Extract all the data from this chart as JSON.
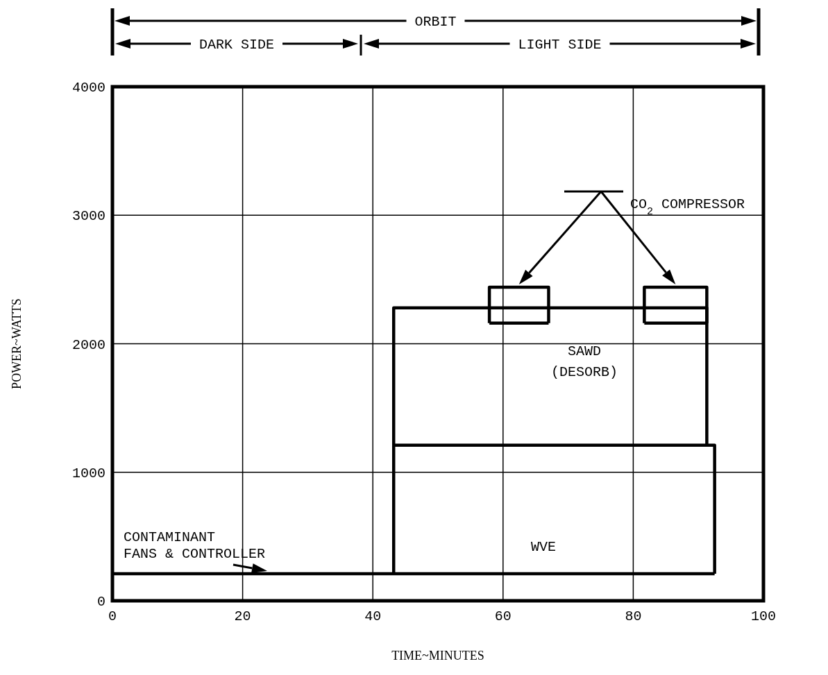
{
  "chart_data": {
    "type": "line",
    "xlabel": "TIME~MINUTES",
    "ylabel": "POWER~WATTS",
    "xlim": [
      0,
      100
    ],
    "xticks": [
      0,
      20,
      40,
      60,
      80,
      100
    ],
    "ylim": [
      0,
      4000
    ],
    "yticks": [
      0,
      1000,
      2000,
      3000,
      4000
    ],
    "grid": true,
    "marker": "none",
    "line_style": "solid",
    "series": [
      {
        "color": "#000000",
        "x": [
          0,
          92.5
        ],
        "values": [
          210,
          210
        ]
      },
      {
        "color": "#000000",
        "x": [
          43.2,
          43.2,
          92.5,
          92.5
        ],
        "values": [
          210,
          1210,
          1210,
          210
        ]
      },
      {
        "color": "#000000",
        "x": [
          43.2,
          43.2,
          91.3,
          91.3
        ],
        "values": [
          1210,
          2280,
          2280,
          1210
        ]
      },
      {
        "color": "#000000",
        "x": [
          57.9,
          57.9,
          67,
          67
        ],
        "values": [
          2160,
          2440,
          2440,
          2160
        ]
      },
      {
        "color": "#000000",
        "x": [
          57.9,
          67
        ],
        "values": [
          2160,
          2160
        ]
      },
      {
        "color": "#000000",
        "x": [
          81.7,
          81.7,
          91.3,
          91.3
        ],
        "values": [
          2160,
          2440,
          2440,
          2160
        ]
      },
      {
        "color": "#000000",
        "x": [
          81.7,
          91.3
        ],
        "values": [
          2160,
          2160
        ]
      }
    ],
    "annotations": [
      "ORBIT",
      "DARK SIDE",
      "LIGHT SIDE",
      "CONTAMINANT\nFANS & CONTROLLER",
      "SAWD\n(DESORB)",
      "WVE",
      "CO$_{2}$ COMPRESSOR"
    ]
  }
}
